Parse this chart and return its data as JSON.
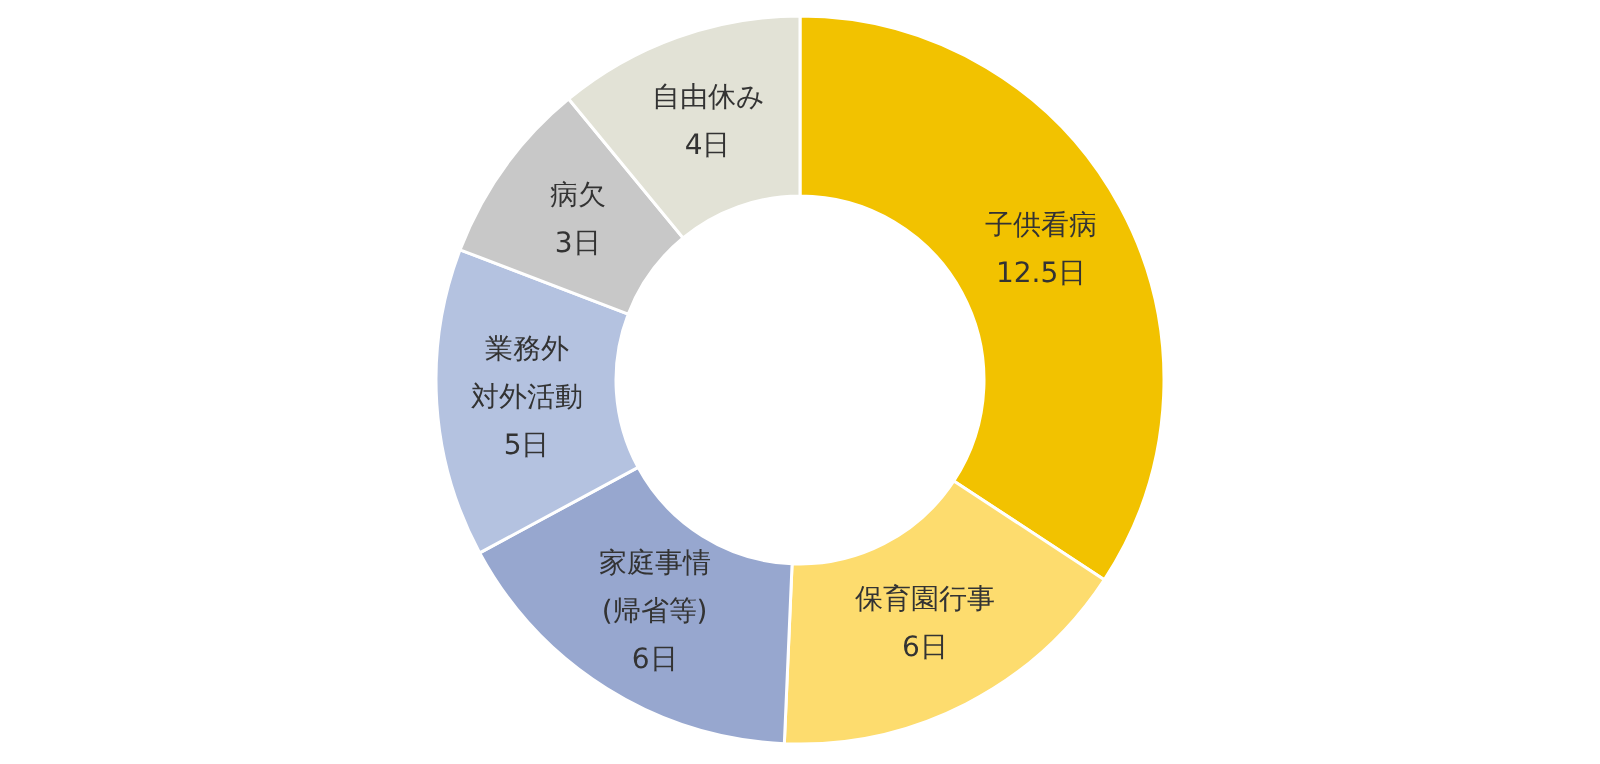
{
  "chart_data": {
    "type": "donut",
    "categories": [
      "子供看病",
      "保育園行事",
      "家庭事情\n(帰省等)",
      "業務外対外活動",
      "病欠",
      "自由休み"
    ],
    "values": [
      12.5,
      6,
      6,
      5,
      3,
      4
    ],
    "value_labels": [
      "12.5日",
      "6日",
      "6日",
      "5日",
      "3日",
      "4日"
    ],
    "colors": [
      "#f2c200",
      "#fddc6e",
      "#97a7cf",
      "#b4c2e0",
      "#c8c8c8",
      "#e2e2d6"
    ]
  }
}
